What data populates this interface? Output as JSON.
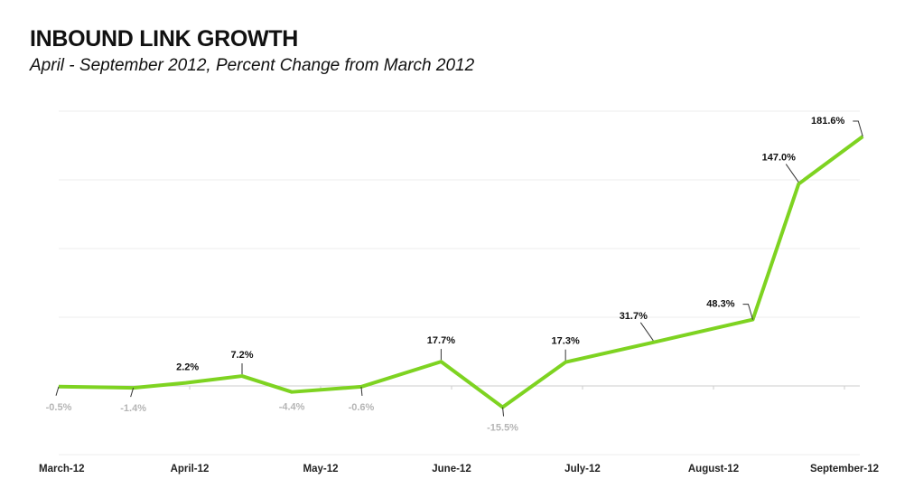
{
  "chart_data": {
    "type": "line",
    "title": "INBOUND LINK GROWTH",
    "subtitle": "April - September 2012, Percent Change from March 2012",
    "xlabel": "",
    "ylabel": "",
    "x_unit": "months since March 2012",
    "xlim": [
      0,
      6.15
    ],
    "ylim": [
      -50,
      200
    ],
    "y_gridlines": [
      -50,
      0,
      50,
      100,
      150,
      200
    ],
    "grid": true,
    "legend": "none",
    "categories": [
      "March-12",
      "April-12",
      "May-12",
      "June-12",
      "July-12",
      "August-12",
      "September-12"
    ],
    "series": [
      {
        "name": "Inbound link growth",
        "color": "#7ed321",
        "points": [
          {
            "x": 0.0,
            "y": -0.5,
            "label": "-0.5%",
            "pos": "below-left"
          },
          {
            "x": 0.57,
            "y": -1.4,
            "label": "-1.4%",
            "pos": "below-left"
          },
          {
            "x": 0.97,
            "y": 2.2,
            "label": "2.2%",
            "pos": "above-nolead"
          },
          {
            "x": 1.4,
            "y": 7.2,
            "label": "7.2%",
            "pos": "above"
          },
          {
            "x": 1.78,
            "y": -4.4,
            "label": "-4.4%",
            "pos": "below-nolead"
          },
          {
            "x": 2.31,
            "y": -0.6,
            "label": "-0.6%",
            "pos": "below"
          },
          {
            "x": 2.92,
            "y": 17.7,
            "label": "17.7%",
            "pos": "above"
          },
          {
            "x": 3.39,
            "y": -15.5,
            "label": "-15.5%",
            "pos": "below"
          },
          {
            "x": 3.87,
            "y": 17.3,
            "label": "17.3%",
            "pos": "above"
          },
          {
            "x": 4.54,
            "y": 31.7,
            "label": "31.7%",
            "pos": "above-left"
          },
          {
            "x": 5.3,
            "y": 48.3,
            "label": "48.3%",
            "pos": "left"
          },
          {
            "x": 5.65,
            "y": 147.0,
            "label": "147.0%",
            "pos": "above-left"
          },
          {
            "x": 6.14,
            "y": 181.6,
            "label": "181.6%",
            "pos": "left"
          }
        ]
      }
    ],
    "colors": {
      "line": "#7ed321",
      "grid": "#ececec",
      "zero": "#d8d8d8",
      "neg_label": "#b5b5b5",
      "pos_label": "#111111"
    }
  }
}
